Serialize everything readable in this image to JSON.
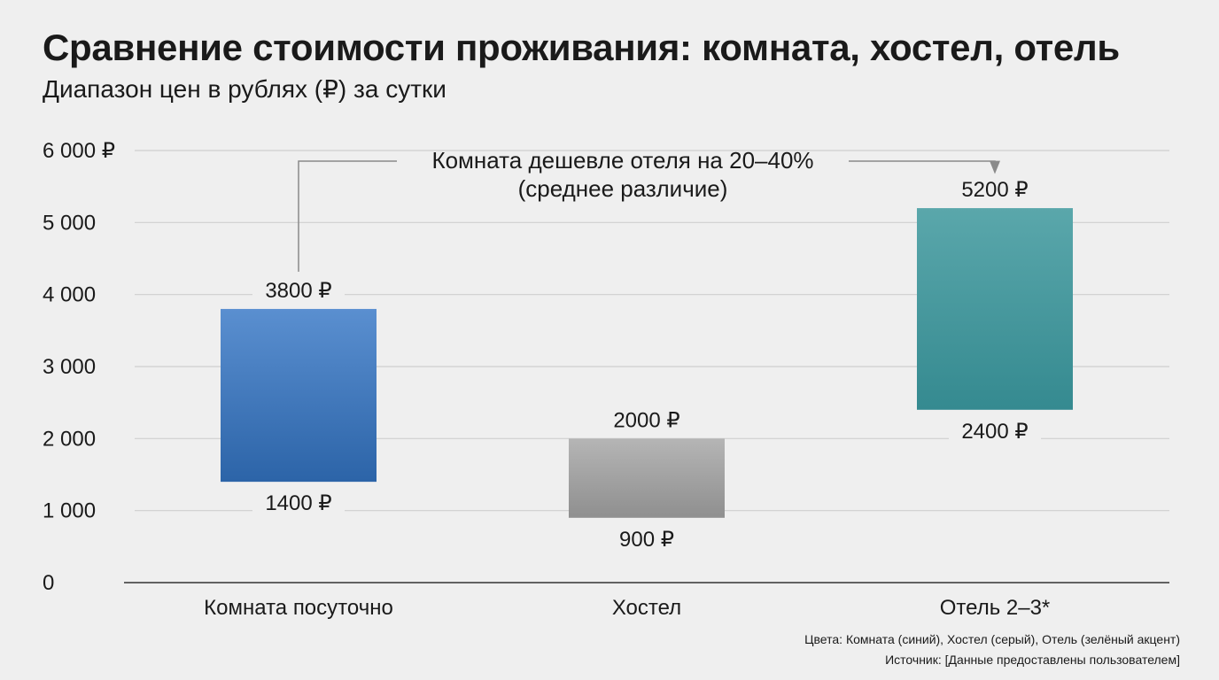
{
  "title": "Сравнение стоимости проживания: комната, хостел, отель",
  "subtitle": "Диапазон цен в рублях (₽) за сутки",
  "footnote_colors": "Цвета: Комната (синий), Хостел (серый), Отель (зелёный акцент)",
  "footnote_source": "Источник: [Данные предоставлены пользователем]",
  "colors": {
    "room": "#3a78bf",
    "hostel": "#a3a3a3",
    "hotel": "#3f9a9f",
    "grid": "#cfcfcf",
    "axis": "#333333",
    "annotation_line": "#8a8a8a"
  },
  "chart_data": {
    "type": "bar",
    "subtype": "floating-range",
    "categories": [
      "Комната посуточно",
      "Хостел",
      "Отель 2–3*"
    ],
    "ranges": [
      {
        "category": "Комната посуточно",
        "min": 1400,
        "max": 3800,
        "min_label": "1400 ₽",
        "max_label": "3800 ₽",
        "color": "#3a78bf"
      },
      {
        "category": "Хостел",
        "min": 900,
        "max": 2000,
        "min_label": "900 ₽",
        "max_label": "2000 ₽",
        "color": "#a3a3a3"
      },
      {
        "category": "Отель 2–3*",
        "min": 2400,
        "max": 5200,
        "min_label": "2400 ₽",
        "max_label": "5200 ₽",
        "color": "#3f9a9f"
      }
    ],
    "y_ticks": [
      0,
      1000,
      2000,
      3000,
      4000,
      5000,
      6000
    ],
    "y_tick_labels": [
      "0",
      "1 000",
      "2 000",
      "3 000",
      "4 000",
      "5 000",
      "6 000 ₽"
    ],
    "ylim": [
      0,
      6000
    ],
    "grid": true,
    "annotation": {
      "line1": "Комната дешевле отеля на 20–40%",
      "line2": "(среднее различие)",
      "from": "Комната посуточно",
      "to": "Отель 2–3*"
    }
  }
}
